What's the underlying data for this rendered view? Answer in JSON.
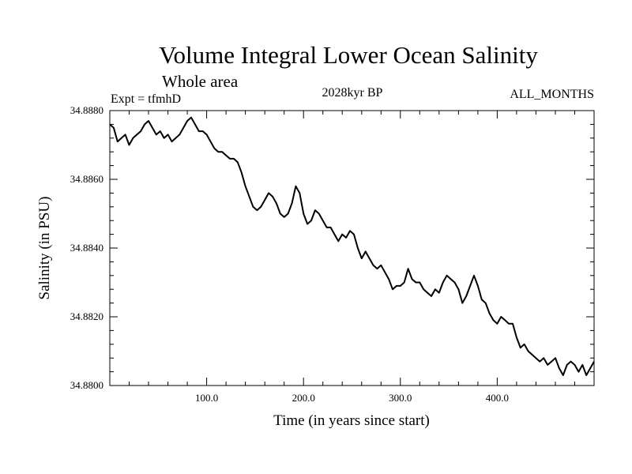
{
  "chart_data": {
    "type": "line",
    "title": "Volume Integral Lower Ocean Salinity",
    "subtitle": "Whole area",
    "experiment": "Expt = tfmhD",
    "period": "2028kyr BP",
    "months": "ALL_MONTHS",
    "xlabel": "Time (in years since start)",
    "ylabel": "Salinity (in PSU)",
    "xlim": [
      0,
      500
    ],
    "ylim": [
      34.88,
      34.888
    ],
    "xticks": [
      100,
      200,
      300,
      400
    ],
    "xtick_labels": [
      "100.0",
      "200.0",
      "300.0",
      "400.0"
    ],
    "yticks": [
      34.88,
      34.882,
      34.884,
      34.886,
      34.888
    ],
    "ytick_labels": [
      "34.8800",
      "34.8820",
      "34.8840",
      "34.8860",
      "34.8880"
    ],
    "series": [
      {
        "name": "Salinity",
        "color": "#000000",
        "x": [
          0,
          4,
          8,
          12,
          16,
          20,
          24,
          28,
          32,
          36,
          40,
          44,
          48,
          52,
          56,
          60,
          64,
          68,
          72,
          76,
          80,
          84,
          88,
          92,
          96,
          100,
          104,
          108,
          112,
          116,
          120,
          124,
          128,
          132,
          136,
          140,
          144,
          148,
          152,
          156,
          160,
          164,
          168,
          172,
          176,
          180,
          184,
          188,
          192,
          196,
          200,
          204,
          208,
          212,
          216,
          220,
          224,
          228,
          232,
          236,
          240,
          244,
          248,
          252,
          256,
          260,
          264,
          268,
          272,
          276,
          280,
          284,
          288,
          292,
          296,
          300,
          304,
          308,
          312,
          316,
          320,
          324,
          328,
          332,
          336,
          340,
          344,
          348,
          352,
          356,
          360,
          364,
          368,
          372,
          376,
          380,
          384,
          388,
          392,
          396,
          400,
          404,
          408,
          412,
          416,
          420,
          424,
          428,
          432,
          436,
          440,
          444,
          448,
          452,
          456,
          460,
          464,
          468,
          472,
          476,
          480,
          484,
          488,
          492,
          496,
          500
        ],
        "values": [
          34.8876,
          34.8875,
          34.8871,
          34.8872,
          34.8873,
          34.887,
          34.8872,
          34.8873,
          34.8874,
          34.8876,
          34.8877,
          34.8875,
          34.8873,
          34.8874,
          34.8872,
          34.8873,
          34.8871,
          34.8872,
          34.8873,
          34.8875,
          34.8877,
          34.8878,
          34.8876,
          34.8874,
          34.8874,
          34.8873,
          34.8871,
          34.8869,
          34.8868,
          34.8868,
          34.8867,
          34.8866,
          34.8866,
          34.8865,
          34.8862,
          34.8858,
          34.8855,
          34.8852,
          34.8851,
          34.8852,
          34.8854,
          34.8856,
          34.8855,
          34.8853,
          34.885,
          34.8849,
          34.885,
          34.8853,
          34.8858,
          34.8856,
          34.885,
          34.8847,
          34.8848,
          34.8851,
          34.885,
          34.8848,
          34.8846,
          34.8846,
          34.8844,
          34.8842,
          34.8844,
          34.8843,
          34.8845,
          34.8844,
          34.884,
          34.8837,
          34.8839,
          34.8837,
          34.8835,
          34.8834,
          34.8835,
          34.8833,
          34.8831,
          34.8828,
          34.8829,
          34.8829,
          34.883,
          34.8834,
          34.8831,
          34.883,
          34.883,
          34.8828,
          34.8827,
          34.8826,
          34.8828,
          34.8827,
          34.883,
          34.8832,
          34.8831,
          34.883,
          34.8828,
          34.8824,
          34.8826,
          34.8829,
          34.8832,
          34.8829,
          34.8825,
          34.8824,
          34.8821,
          34.8819,
          34.8818,
          34.882,
          34.8819,
          34.8818,
          34.8818,
          34.8814,
          34.8811,
          34.8812,
          34.881,
          34.8809,
          34.8808,
          34.8807,
          34.8808,
          34.8806,
          34.8807,
          34.8808,
          34.8805,
          34.8803,
          34.8806,
          34.8807,
          34.8806,
          34.8804,
          34.8806,
          34.8803,
          34.8805,
          34.8807
        ]
      }
    ]
  }
}
